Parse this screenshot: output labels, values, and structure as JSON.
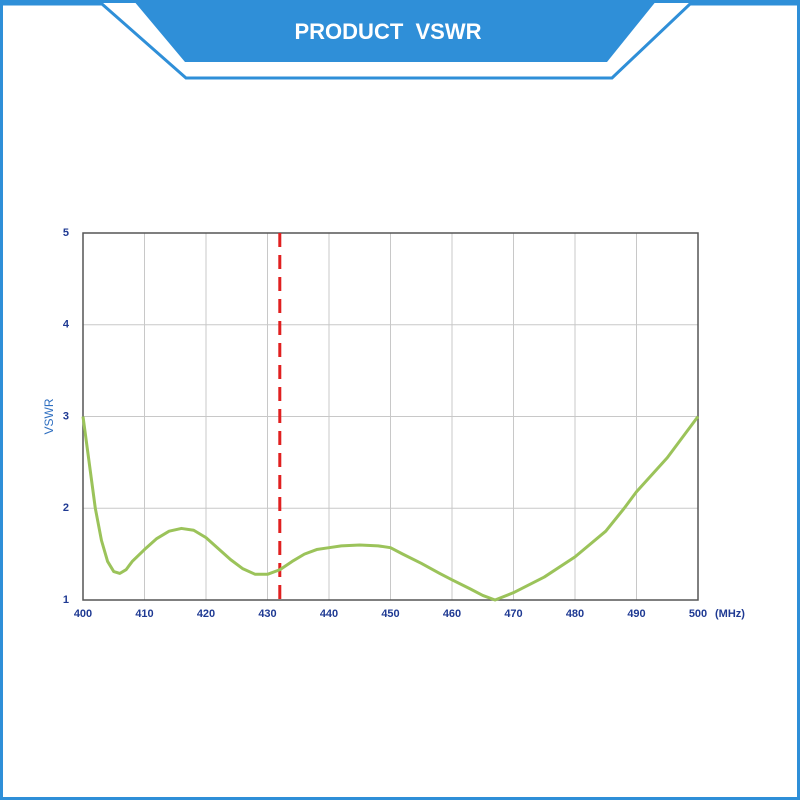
{
  "header": {
    "title": "PRODUCT  VSWR"
  },
  "chart_data": {
    "type": "line",
    "ylabel": "VSWR",
    "xunit": "(MHz)",
    "x": [
      400,
      401,
      402,
      403,
      404,
      405,
      406,
      407,
      408,
      410,
      412,
      414,
      416,
      418,
      420,
      422,
      424,
      426,
      428,
      430,
      432,
      434,
      436,
      438,
      440,
      442,
      445,
      448,
      450,
      452,
      455,
      458,
      460,
      463,
      465,
      467,
      470,
      475,
      480,
      485,
      488,
      490,
      495,
      500
    ],
    "series": [
      {
        "name": "VSWR",
        "color": "#9bc35a",
        "values": [
          3.0,
          2.5,
          2.0,
          1.65,
          1.42,
          1.31,
          1.29,
          1.33,
          1.42,
          1.55,
          1.67,
          1.75,
          1.78,
          1.76,
          1.68,
          1.56,
          1.44,
          1.34,
          1.28,
          1.28,
          1.33,
          1.42,
          1.5,
          1.55,
          1.57,
          1.59,
          1.6,
          1.59,
          1.57,
          1.5,
          1.4,
          1.29,
          1.22,
          1.12,
          1.05,
          1.0,
          1.08,
          1.25,
          1.47,
          1.75,
          2.0,
          2.18,
          2.55,
          3.0
        ]
      }
    ],
    "marker_x": 432,
    "marker_color": "#e02020",
    "xlim": [
      400,
      500
    ],
    "xticks": [
      400,
      410,
      420,
      430,
      440,
      450,
      460,
      470,
      480,
      490,
      500
    ],
    "ylim": [
      1,
      5
    ],
    "yticks": [
      1,
      2,
      3,
      4,
      5
    ],
    "grid": true
  }
}
